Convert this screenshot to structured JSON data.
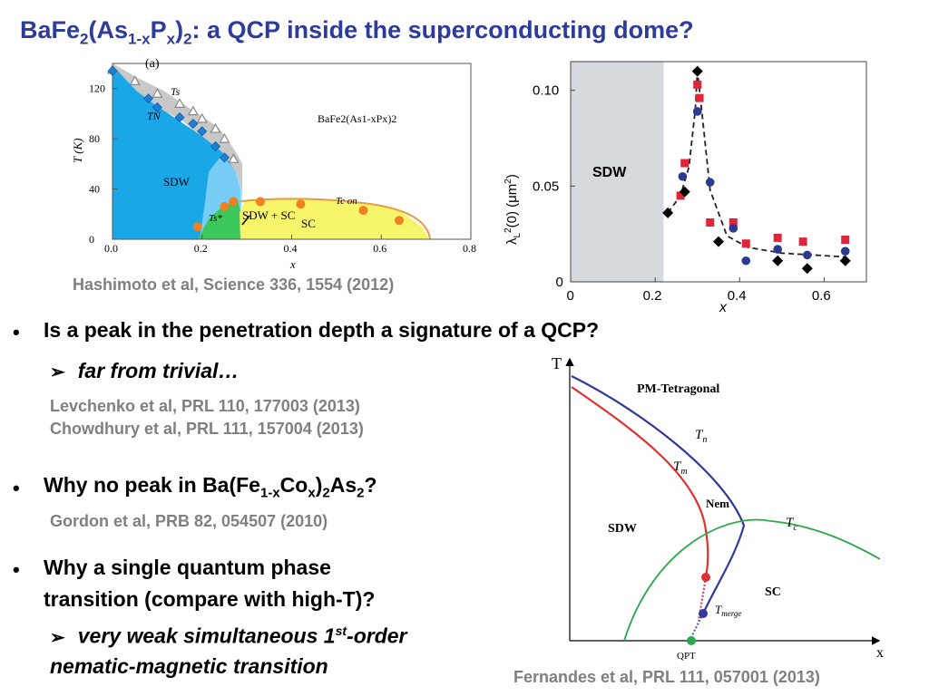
{
  "slide": {
    "title": {
      "part1": "BaFe",
      "sub1": "2",
      "part2": "(As",
      "sub2": "1-x",
      "part3": "P",
      "sub3": "x",
      "part4": ")",
      "sub4": "2",
      "part5": ": a QCP inside the superconducting dome?"
    },
    "citations": {
      "hashimoto": "Hashimoto et al, Science 336, 1554 (2012)",
      "levchenko": "Levchenko et al, PRL 110, 177003 (2013)",
      "chowdhury": "Chowdhury et al, PRL 111, 157004 (2013)",
      "gordon": "Gordon et al, PRB 82, 054507 (2010)",
      "fernandes": "Fernandes et al, PRL 111, 057001 (2013)"
    },
    "bullets": {
      "dot": "•",
      "arrow": "➢",
      "b1": "Is a peak in the penetration depth a signature of a QCP?",
      "b1_sub": "far from trivial…",
      "b2_part1": "Why no peak in Ba(Fe",
      "b2_sub1": "1-x",
      "b2_part2": "Co",
      "b2_sub2": "x",
      "b2_part3": ")",
      "b2_sub3": "2",
      "b2_part4": "As",
      "b2_sub4": "2",
      "b2_part5": "?",
      "b3_line1": "Why a single quantum phase",
      "b3_line2": "transition (compare with high-T)?",
      "b3_sub_part1": "very weak simultaneous 1",
      "b3_sub_sup": "st",
      "b3_sub_part2": "-order",
      "b3_sub_line2": "nematic-magnetic transition"
    }
  },
  "chart_data": [
    {
      "type": "scatter",
      "panel_label": "(a)",
      "compound_label": "BaFe2(As1-xPx)2",
      "xlabel": "x",
      "ylabel": "T (K)",
      "xlim": [
        0,
        0.8
      ],
      "ylim": [
        0,
        140
      ],
      "x_ticks": [
        "0.0",
        "0.2",
        "0.4",
        "0.6",
        "0.8"
      ],
      "y_ticks": [
        "0",
        "40",
        "80",
        "120"
      ],
      "region_labels": [
        "SDW",
        "SDW + SC",
        "SC"
      ],
      "curve_labels": [
        "Ts",
        "TN",
        "Tc on",
        "Ts*"
      ],
      "colors": {
        "sdw": "#1aa7e8",
        "sc": "#f7f56a",
        "ts_band": "#bfbfbf",
        "coexist": "#3cc85a",
        "tc_points": "#f08020",
        "tn_points": "#1f7fd6"
      },
      "series": [
        {
          "name": "Ts",
          "x": [
            0.0,
            0.05,
            0.1,
            0.15,
            0.18,
            0.2,
            0.23,
            0.25,
            0.27
          ],
          "y": [
            135,
            126,
            116,
            108,
            102,
            96,
            88,
            80,
            64
          ]
        },
        {
          "name": "TN",
          "x": [
            0.0,
            0.08,
            0.1,
            0.15,
            0.18,
            0.2,
            0.23,
            0.25
          ],
          "y": [
            134,
            112,
            105,
            97,
            92,
            86,
            74,
            65
          ]
        },
        {
          "name": "Tc on",
          "x": [
            0.19,
            0.25,
            0.27,
            0.33,
            0.42,
            0.56,
            0.64
          ],
          "y": [
            10,
            26,
            30,
            30,
            28,
            23,
            15
          ]
        }
      ]
    },
    {
      "type": "scatter",
      "xlabel": "x",
      "ylabel": "λL2(0) (μm2)",
      "xlim": [
        0,
        0.7
      ],
      "ylim": [
        0,
        0.115
      ],
      "x_ticks": [
        "0",
        "0.2",
        "0.4",
        "0.6"
      ],
      "y_ticks": [
        "0",
        "0.05",
        "0.10"
      ],
      "region_labels": [
        "SDW"
      ],
      "sdw_region_x": [
        0,
        0.22
      ],
      "colors": {
        "sdw_region": "#d6d9de",
        "red": "#e0243a",
        "blue": "#2b3a8c",
        "black": "#000000"
      },
      "series": [
        {
          "marker": "diamond-black",
          "x": [
            0.23,
            0.27,
            0.3,
            0.35,
            0.49,
            0.56,
            0.65
          ],
          "y": [
            0.036,
            0.047,
            0.11,
            0.021,
            0.011,
            0.007,
            0.011
          ]
        },
        {
          "marker": "circle-blue",
          "x": [
            0.265,
            0.3,
            0.33,
            0.385,
            0.415,
            0.49,
            0.56,
            0.65
          ],
          "y": [
            0.055,
            0.089,
            0.052,
            0.028,
            0.011,
            0.017,
            0.014,
            0.016
          ]
        },
        {
          "marker": "square-red",
          "x": [
            0.26,
            0.27,
            0.3,
            0.305,
            0.33,
            0.385,
            0.415,
            0.49,
            0.55,
            0.65
          ],
          "y": [
            0.045,
            0.062,
            0.103,
            0.096,
            0.031,
            0.031,
            0.02,
            0.023,
            0.021,
            0.022
          ]
        },
        {
          "marker": "dashed-guide",
          "x": [
            0.23,
            0.26,
            0.28,
            0.295,
            0.3,
            0.31,
            0.33,
            0.37,
            0.42,
            0.5,
            0.65
          ],
          "y": [
            0.036,
            0.045,
            0.06,
            0.09,
            0.11,
            0.09,
            0.048,
            0.024,
            0.018,
            0.015,
            0.013
          ]
        }
      ]
    },
    {
      "type": "diagram",
      "axis_labels": {
        "y": "T",
        "x": "x"
      },
      "region_labels": [
        "PM-Tetragonal",
        "SDW",
        "Nem",
        "SC"
      ],
      "curve_labels": {
        "tn": "T",
        "tn_sub": "n",
        "tm": "T",
        "tm_sub": "m",
        "tc": "T",
        "tc_sub": "c",
        "tmerge": "T",
        "tmerge_sub": "merge"
      },
      "point_labels": [
        "QPT"
      ],
      "colors": {
        "tn": "#33399a",
        "tm": "#e03030",
        "tc": "#2aa84a",
        "qpt": "#2aa84a"
      }
    }
  ]
}
